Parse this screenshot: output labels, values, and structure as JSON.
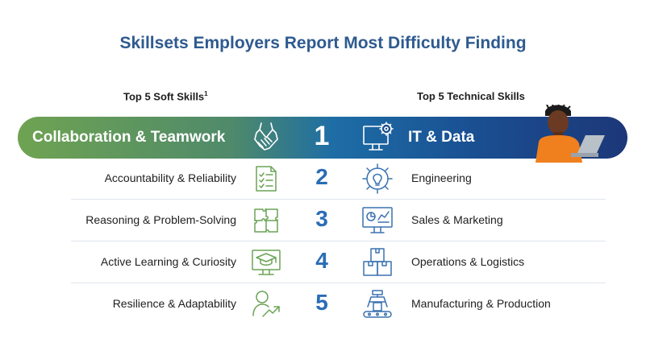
{
  "title": "Skillsets Employers Report Most Difficulty Finding",
  "soft_header": "Top 5 Soft Skills",
  "soft_header_sup": "1",
  "tech_header": "Top 5 Technical Skills",
  "rows": [
    {
      "rank": "1",
      "soft": "Collaboration & Teamwork",
      "tech": "IT & Data"
    },
    {
      "rank": "2",
      "soft": "Accountability & Reliability",
      "tech": "Engineering"
    },
    {
      "rank": "3",
      "soft": "Reasoning & Problem-Solving",
      "tech": "Sales & Marketing"
    },
    {
      "rank": "4",
      "soft": "Active Learning & Curiosity",
      "tech": "Operations & Logistics"
    },
    {
      "rank": "5",
      "soft": "Resilience & Adaptability",
      "tech": "Manufacturing & Production"
    }
  ],
  "colors": {
    "title": "#2e5a8f",
    "green": "#6fa352",
    "navy": "#1c3778",
    "rank": "#2a6db5",
    "icon_green": "#6aa355",
    "icon_blue": "#3a72b0"
  },
  "icons": {
    "soft": [
      "handshake-icon",
      "checklist-icon",
      "puzzle-icon",
      "graduation-cap-icon",
      "growth-person-icon"
    ],
    "tech": [
      "monitor-gear-icon",
      "gear-bulb-icon",
      "analytics-monitor-icon",
      "boxes-icon",
      "robot-arm-icon"
    ]
  }
}
